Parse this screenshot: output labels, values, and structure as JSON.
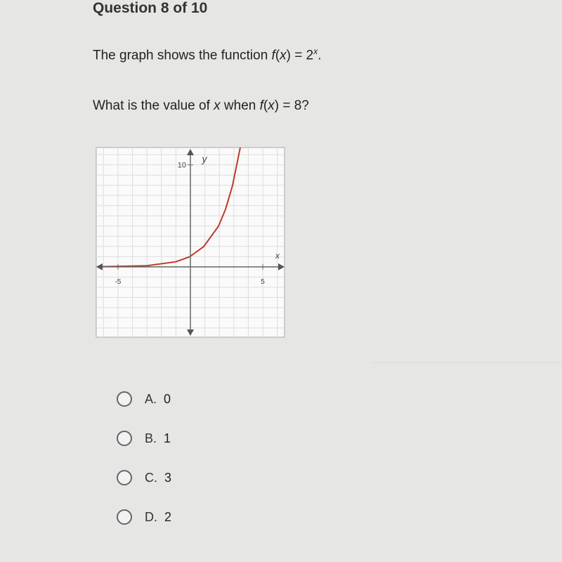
{
  "header": {
    "title": "Question 8 of 10"
  },
  "question": {
    "statement": [
      "The graph shows the function ",
      "f",
      "(",
      "x",
      ") = 2",
      "x",
      "."
    ],
    "prompt": [
      "What is the value of ",
      "x",
      " when ",
      "f",
      "(",
      "x",
      ") = 8?"
    ]
  },
  "graph": {
    "xlim": [
      -6.5,
      6.5
    ],
    "ylim": [
      -6.9,
      11.7
    ],
    "xticks": [
      -5,
      5
    ],
    "yticks": [
      10
    ],
    "x_label": "x",
    "y_label": "y"
  },
  "options": [
    {
      "letter": "A.",
      "text": "0"
    },
    {
      "letter": "B.",
      "text": "1"
    },
    {
      "letter": "C.",
      "text": "3"
    },
    {
      "letter": "D.",
      "text": "2"
    }
  ]
}
